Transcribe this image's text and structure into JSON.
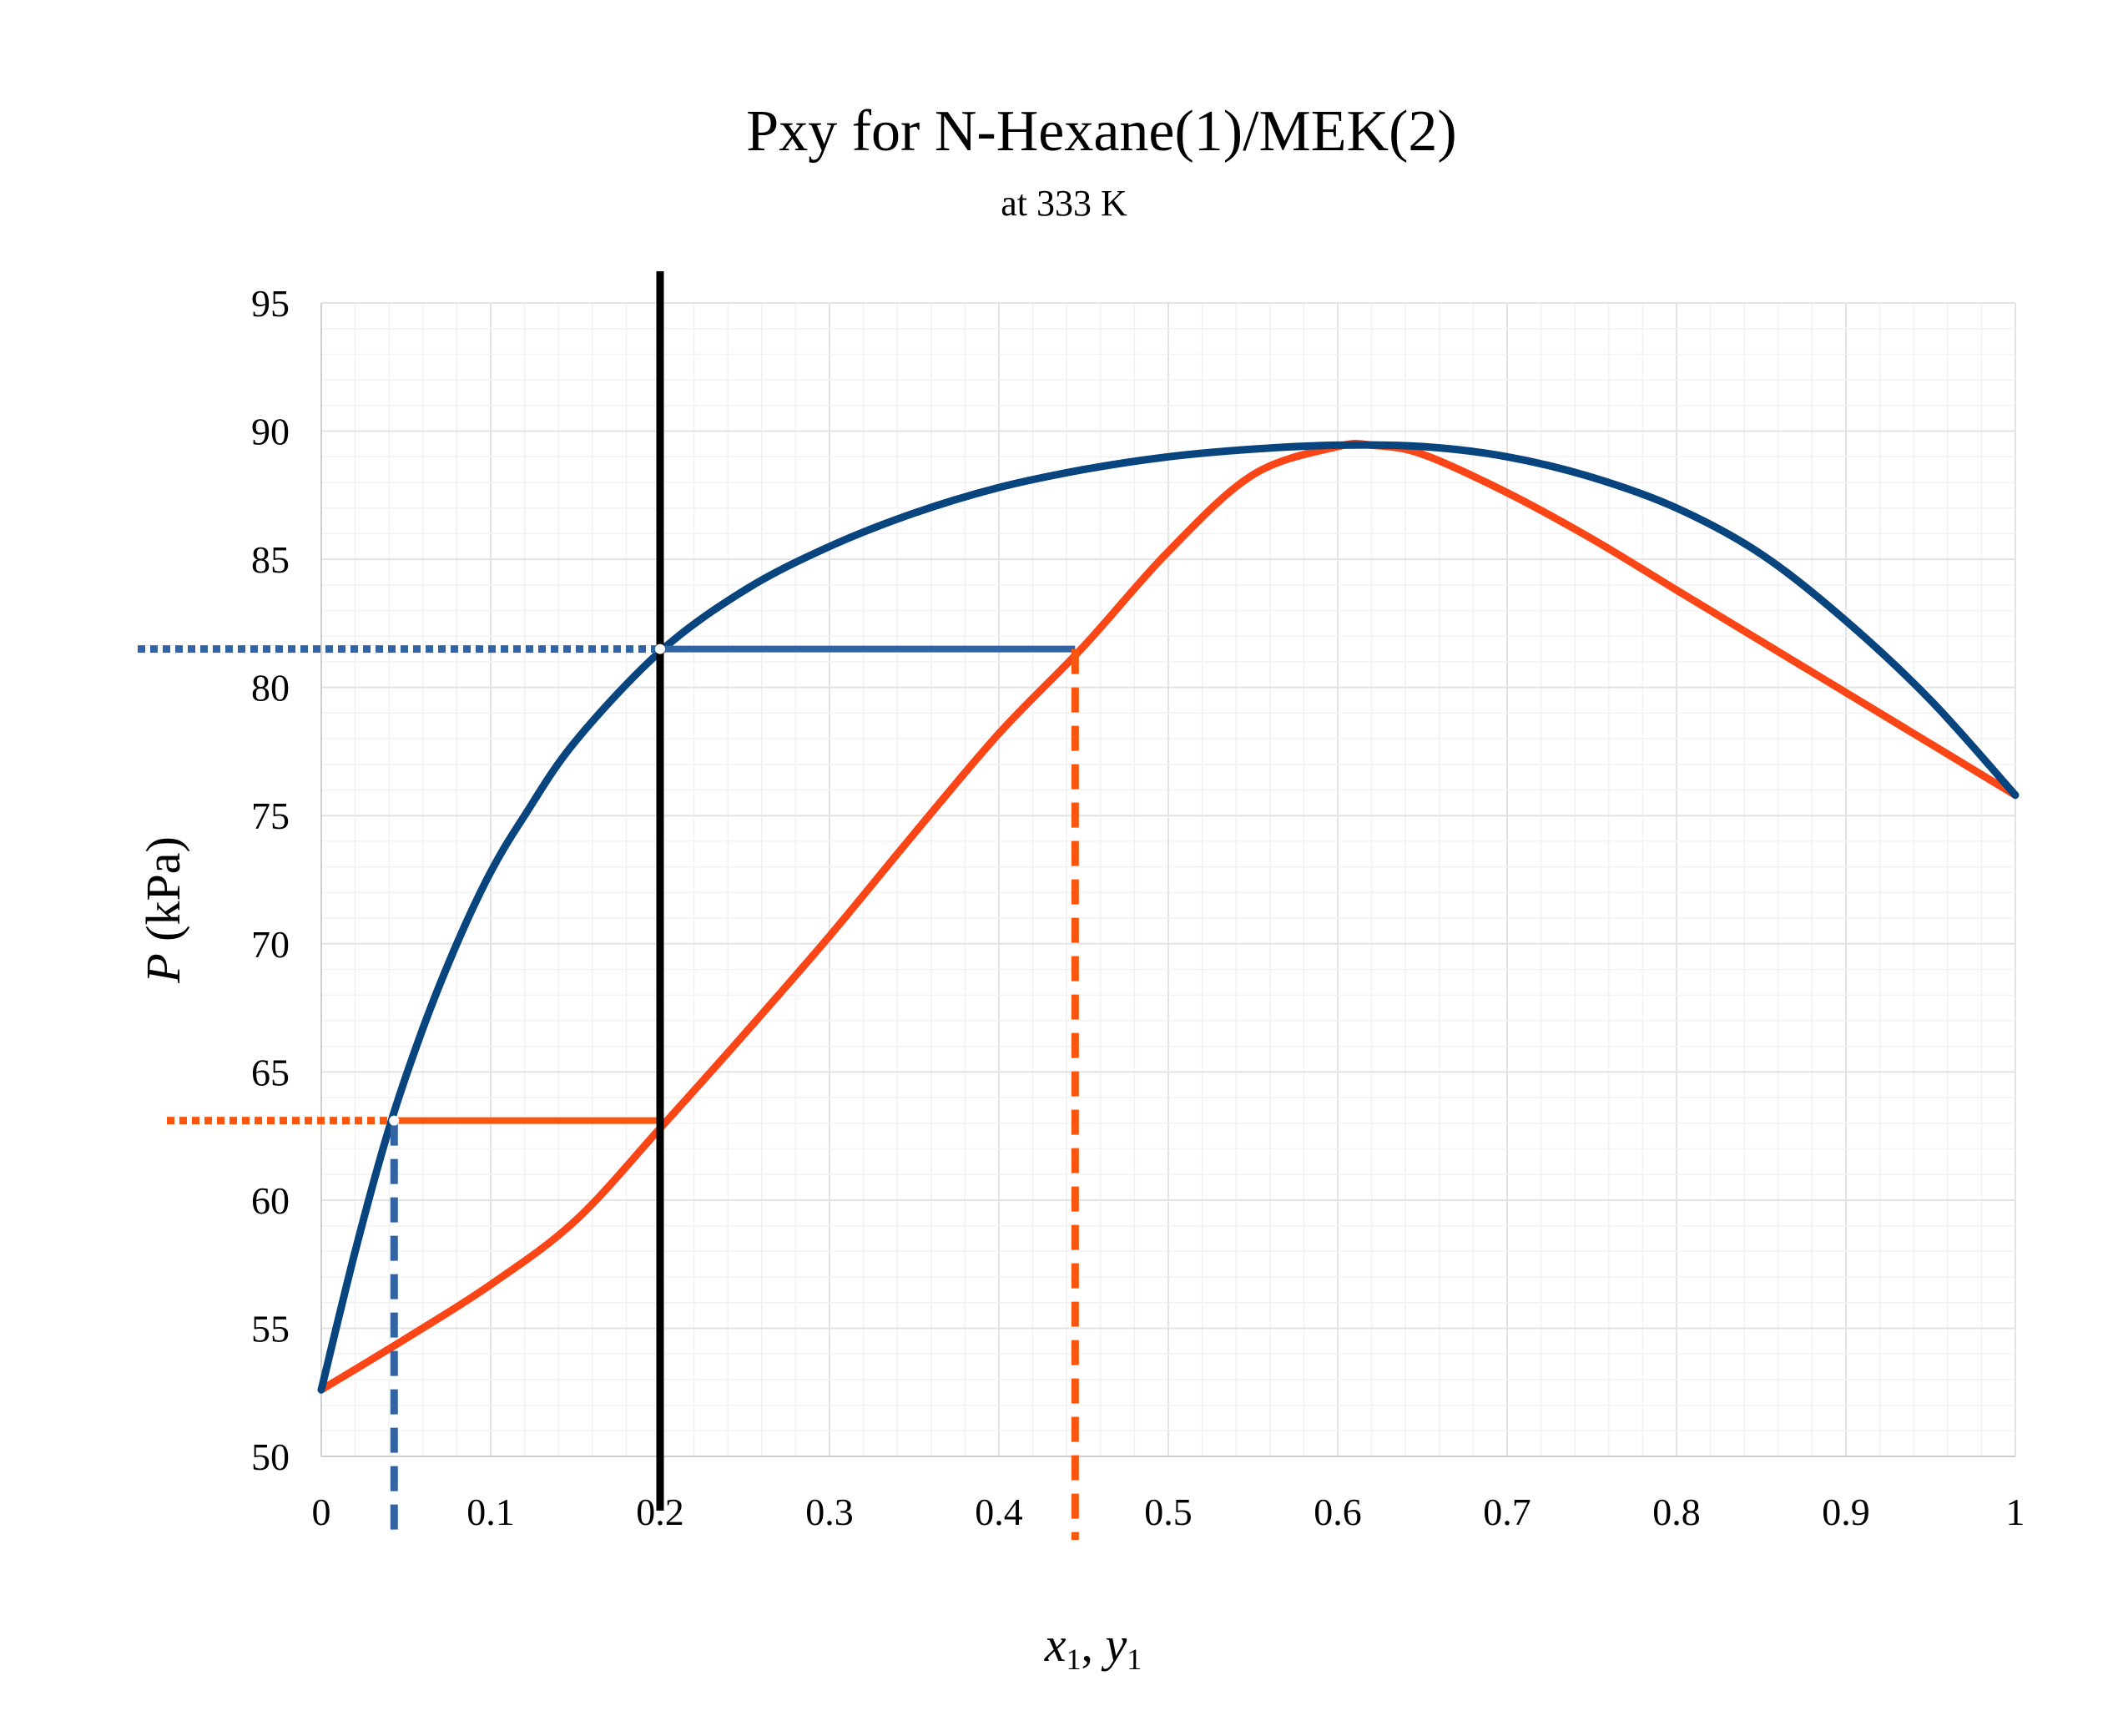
{
  "chart_data": {
    "type": "line",
    "title": "Pxy for N-Hexane(1)/MEK(2)",
    "subtitle": "at 333 K",
    "xlabel": {
      "var1": "x",
      "sub1": "1",
      "sep": ", ",
      "var2": "y",
      "sub2": "1"
    },
    "ylabel": {
      "var": "P",
      "unit": " (kPa)"
    },
    "xlim": [
      0,
      1
    ],
    "ylim": [
      50,
      95
    ],
    "xticks": [
      0,
      0.1,
      0.2,
      0.3,
      0.4,
      0.5,
      0.6,
      0.7,
      0.8,
      0.9,
      1
    ],
    "xtick_labels": [
      "0",
      "0.1",
      "0.2",
      "0.3",
      "0.4",
      "0.5",
      "0.6",
      "0.7",
      "0.8",
      "0.9",
      "1"
    ],
    "yticks": [
      50,
      55,
      60,
      65,
      70,
      75,
      80,
      85,
      90,
      95
    ],
    "ytick_labels": [
      "50",
      "55",
      "60",
      "65",
      "70",
      "75",
      "80",
      "85",
      "90",
      "95"
    ],
    "grid": true,
    "colors": {
      "bubble": "#08457e",
      "dew": "#fa4616",
      "tie_blue": "#3163a5",
      "tie_orange": "#fa560f",
      "marker": "#000000",
      "grid_major": "#e3e3e3",
      "grid_minor": "#f2f2f2"
    },
    "series": [
      {
        "role": "bubble",
        "x": [
          0,
          0.02,
          0.04,
          0.06,
          0.08,
          0.1,
          0.12,
          0.15,
          0.2,
          0.25,
          0.3,
          0.35,
          0.4,
          0.45,
          0.5,
          0.55,
          0.6,
          0.65,
          0.7,
          0.75,
          0.8,
          0.85,
          0.9,
          0.95,
          1.0
        ],
        "y": [
          52.6,
          58.0,
          62.8,
          66.7,
          70.0,
          72.8,
          75.0,
          77.9,
          81.4,
          83.8,
          85.5,
          86.8,
          87.8,
          88.5,
          89.0,
          89.3,
          89.45,
          89.4,
          89.0,
          88.2,
          87.0,
          85.2,
          82.6,
          79.5,
          75.8
        ]
      },
      {
        "role": "dew",
        "x": [
          0,
          0.05,
          0.1,
          0.15,
          0.2,
          0.25,
          0.3,
          0.35,
          0.4,
          0.45,
          0.5,
          0.55,
          0.6,
          0.62,
          0.65,
          0.7,
          0.75,
          0.8,
          0.85,
          0.9,
          0.95,
          1.0
        ],
        "y": [
          52.6,
          54.6,
          56.7,
          59.2,
          62.8,
          66.5,
          70.3,
          74.3,
          78.2,
          81.6,
          85.3,
          88.3,
          89.4,
          89.45,
          89.1,
          87.6,
          85.8,
          83.8,
          81.8,
          79.8,
          77.8,
          75.8
        ]
      }
    ],
    "annotations": {
      "vertical_line_x": 0.2,
      "upper_tie": {
        "P": 81.5,
        "x_from": 0.2,
        "x_to": 0.445
      },
      "lower_tie": {
        "P": 63.1,
        "x_from": 0.043,
        "x_to": 0.2
      },
      "drop_lines": [
        {
          "x": 0.043,
          "from_P": 63.1,
          "color_role": "tie_blue"
        },
        {
          "x": 0.445,
          "from_P": 81.5,
          "color_role": "tie_orange"
        }
      ]
    }
  }
}
